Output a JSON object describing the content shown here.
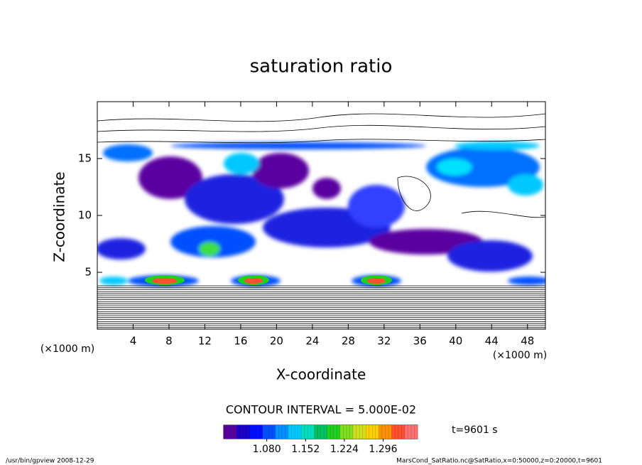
{
  "chart_data": {
    "type": "contour",
    "title": "saturation ratio",
    "xlabel": "X-coordinate",
    "ylabel": "Z-coordinate",
    "xunit": "(×1000 m)",
    "yunit": "(×1000 m)",
    "xlim": [
      0,
      50
    ],
    "ylim": [
      0,
      20
    ],
    "xticks": [
      4,
      8,
      12,
      16,
      20,
      24,
      28,
      32,
      36,
      40,
      44,
      48
    ],
    "yticks": [
      5,
      10,
      15
    ],
    "contour_interval": "CONTOUR INTERVAL = 5.000E-02",
    "time": "t=9601 s",
    "colorbar": {
      "lim": [
        1.0,
        1.36
      ],
      "ticks": [
        {
          "value": 1.08,
          "label": "1.080"
        },
        {
          "value": 1.152,
          "label": "1.152"
        },
        {
          "value": 1.224,
          "label": "1.224"
        },
        {
          "value": 1.296,
          "label": "1.296"
        }
      ],
      "colors": [
        "#5a00a0",
        "#1a00c8",
        "#0010ff",
        "#0050ff",
        "#0090ff",
        "#00c8ff",
        "#00e0c0",
        "#00c060",
        "#20d020",
        "#80e020",
        "#d0e020",
        "#ffd000",
        "#ff9000",
        "#ff5030",
        "#ff7070"
      ]
    }
  },
  "footer": {
    "left": "/usr/bin/gpview  2008-12-29",
    "right": "MarsCond_SatRatio.nc@SatRatio,x=0:50000,z=0:20000,t=9601"
  }
}
